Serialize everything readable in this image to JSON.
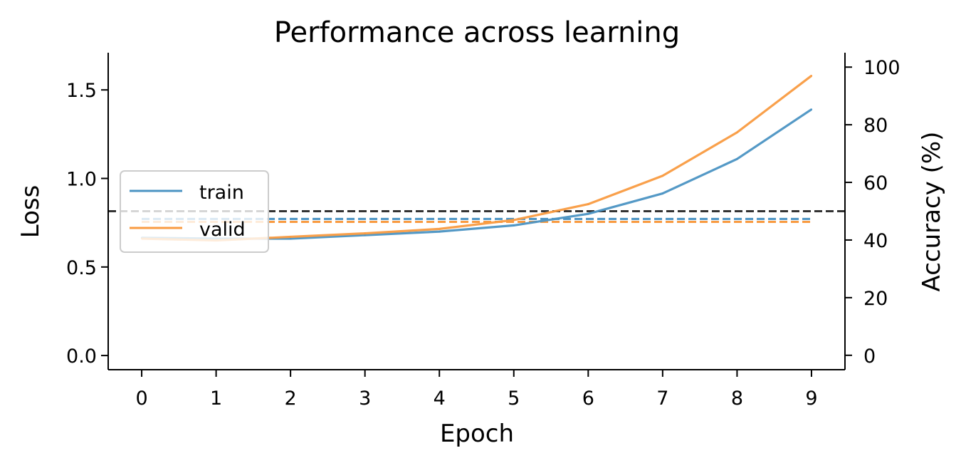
{
  "chart_data": {
    "type": "line",
    "title": "Performance across learning",
    "xlabel": "Epoch",
    "ylabel": "Loss",
    "ylabel_right": "Accuracy (%)",
    "x": [
      0,
      1,
      2,
      3,
      4,
      5,
      6,
      7,
      8,
      9
    ],
    "x_ticks": [
      "0",
      "1",
      "2",
      "3",
      "4",
      "5",
      "6",
      "7",
      "8",
      "9"
    ],
    "xlim": [
      -0.45,
      9.45
    ],
    "ylim": [
      -0.08,
      1.71
    ],
    "y_ticks": [
      "0.0",
      "0.5",
      "1.0",
      "1.5"
    ],
    "y_right_lim": [
      -5,
      105
    ],
    "y_right_ticks": [
      "0",
      "20",
      "40",
      "60",
      "80",
      "100"
    ],
    "grid": false,
    "legend_position": "center-left",
    "series": [
      {
        "name": "train",
        "axis": "left",
        "style": "solid",
        "color": "#4b93c3",
        "values": [
          0.665,
          0.66,
          0.66,
          0.68,
          0.7,
          0.735,
          0.8,
          0.915,
          1.11,
          1.39
        ]
      },
      {
        "name": "valid",
        "axis": "left",
        "style": "solid",
        "color": "#f99b41",
        "values": [
          0.66,
          0.65,
          0.67,
          0.69,
          0.715,
          0.765,
          0.855,
          1.015,
          1.26,
          1.58
        ]
      }
    ],
    "reference_lines": [
      {
        "axis": "right",
        "value": 47.3,
        "style": "dashed",
        "color": "#4b93c3",
        "x_range": [
          0,
          9
        ]
      },
      {
        "axis": "right",
        "value": 46.3,
        "style": "dashed",
        "color": "#f99b41",
        "x_range": [
          0,
          9
        ]
      },
      {
        "axis": "right",
        "value": 50,
        "style": "dashed",
        "color": "#333333",
        "x_range": "full"
      }
    ]
  }
}
